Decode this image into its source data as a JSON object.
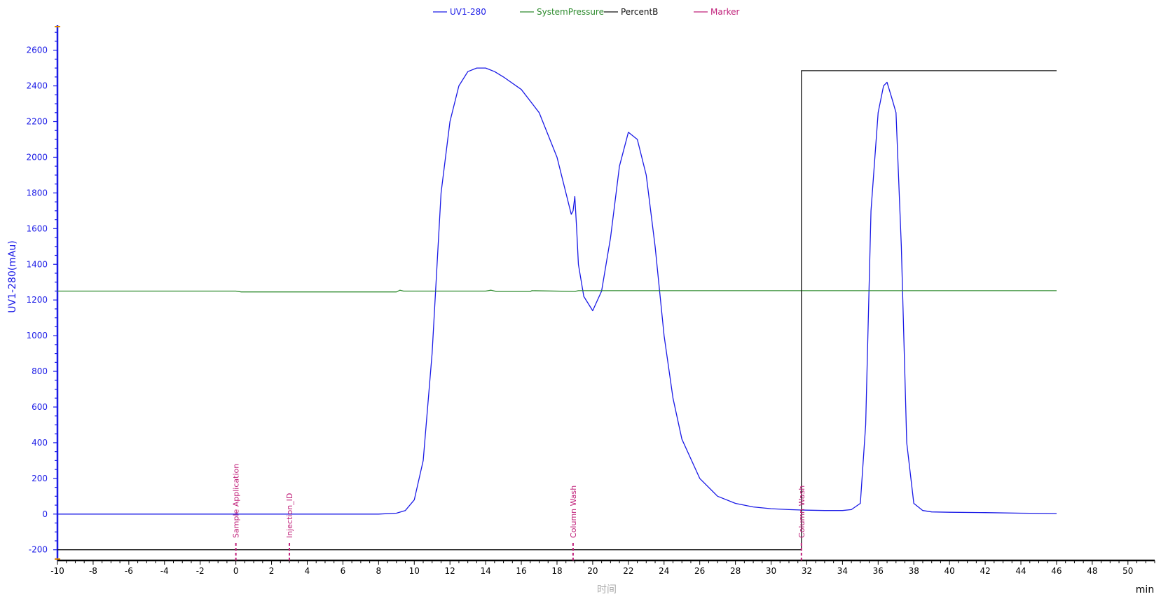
{
  "chart_data": {
    "type": "line",
    "legend": {
      "placement": "top-center",
      "items": [
        {
          "label": "UV1-280",
          "color": "#1a1ae6"
        },
        {
          "label": "SystemPressure",
          "color": "#2e8b2e"
        },
        {
          "label": "PercentB",
          "color": "#111111"
        },
        {
          "label": "Marker",
          "color": "#c0207a"
        }
      ]
    },
    "ylabel": "UV1-280(mAu)",
    "xlabel": "时间",
    "x_unit": "min",
    "xlim": [
      -10,
      51.5
    ],
    "ylim": [
      -260,
      2740
    ],
    "x_ticks": [
      "-10",
      "-8",
      "-6",
      "-4",
      "-2",
      "0",
      "2",
      "4",
      "6",
      "8",
      "10",
      "12",
      "14",
      "16",
      "18",
      "20",
      "22",
      "24",
      "26",
      "28",
      "30",
      "32",
      "34",
      "36",
      "38",
      "40",
      "42",
      "44",
      "46",
      "48",
      "50"
    ],
    "y_ticks": [
      "-200",
      "0",
      "200",
      "400",
      "600",
      "800",
      "1000",
      "1200",
      "1400",
      "1600",
      "1800",
      "2000",
      "2200",
      "2400",
      "2600"
    ],
    "series": [
      {
        "name": "UV1-280",
        "color": "#1a1ae6",
        "x": [
          -10,
          8,
          9,
          9.5,
          10,
          10.5,
          11,
          11.5,
          12,
          12.5,
          13,
          13.5,
          14,
          14.5,
          15,
          16,
          17,
          18,
          18.8,
          18.9,
          19,
          19.1,
          19.2,
          19.5,
          20,
          20.5,
          21,
          21.5,
          22,
          22.5,
          23,
          23.5,
          24,
          24.5,
          25,
          26,
          27,
          28,
          29,
          30,
          31,
          32,
          33,
          34,
          34.5,
          35,
          35.3,
          35.6,
          36,
          36.3,
          36.5,
          36.8,
          37,
          37.3,
          37.6,
          38,
          38.5,
          39,
          40,
          42,
          44,
          46
        ],
        "y": [
          0,
          0,
          5,
          20,
          80,
          300,
          900,
          1800,
          2200,
          2400,
          2480,
          2500,
          2500,
          2480,
          2450,
          2380,
          2250,
          2000,
          1680,
          1700,
          1780,
          1600,
          1400,
          1220,
          1140,
          1250,
          1550,
          1950,
          2140,
          2100,
          1900,
          1500,
          1000,
          650,
          420,
          200,
          100,
          60,
          40,
          30,
          25,
          22,
          20,
          20,
          25,
          60,
          500,
          1700,
          2250,
          2400,
          2420,
          2320,
          2250,
          1500,
          400,
          60,
          20,
          12,
          10,
          8,
          5,
          3
        ]
      },
      {
        "name": "SystemPressure",
        "color": "#2e8b2e",
        "x": [
          -10,
          0,
          0.3,
          9,
          9.2,
          9.4,
          14,
          14.3,
          14.6,
          16.5,
          16.6,
          19,
          19.2,
          46
        ],
        "y": [
          1250,
          1250,
          1245,
          1245,
          1255,
          1250,
          1250,
          1255,
          1248,
          1248,
          1252,
          1248,
          1252,
          1252
        ]
      },
      {
        "name": "PercentB",
        "color": "#111111",
        "x": [
          -10,
          31.7,
          31.7,
          46
        ],
        "y": [
          -200,
          -200,
          2485,
          2485
        ]
      }
    ],
    "markers": [
      {
        "label": "Sample Application",
        "x": 0
      },
      {
        "label": "Injection_ID",
        "x": 3
      },
      {
        "label": "Column Wash",
        "x": 18.9
      },
      {
        "label": "Column Wash",
        "x": 31.7
      }
    ]
  }
}
